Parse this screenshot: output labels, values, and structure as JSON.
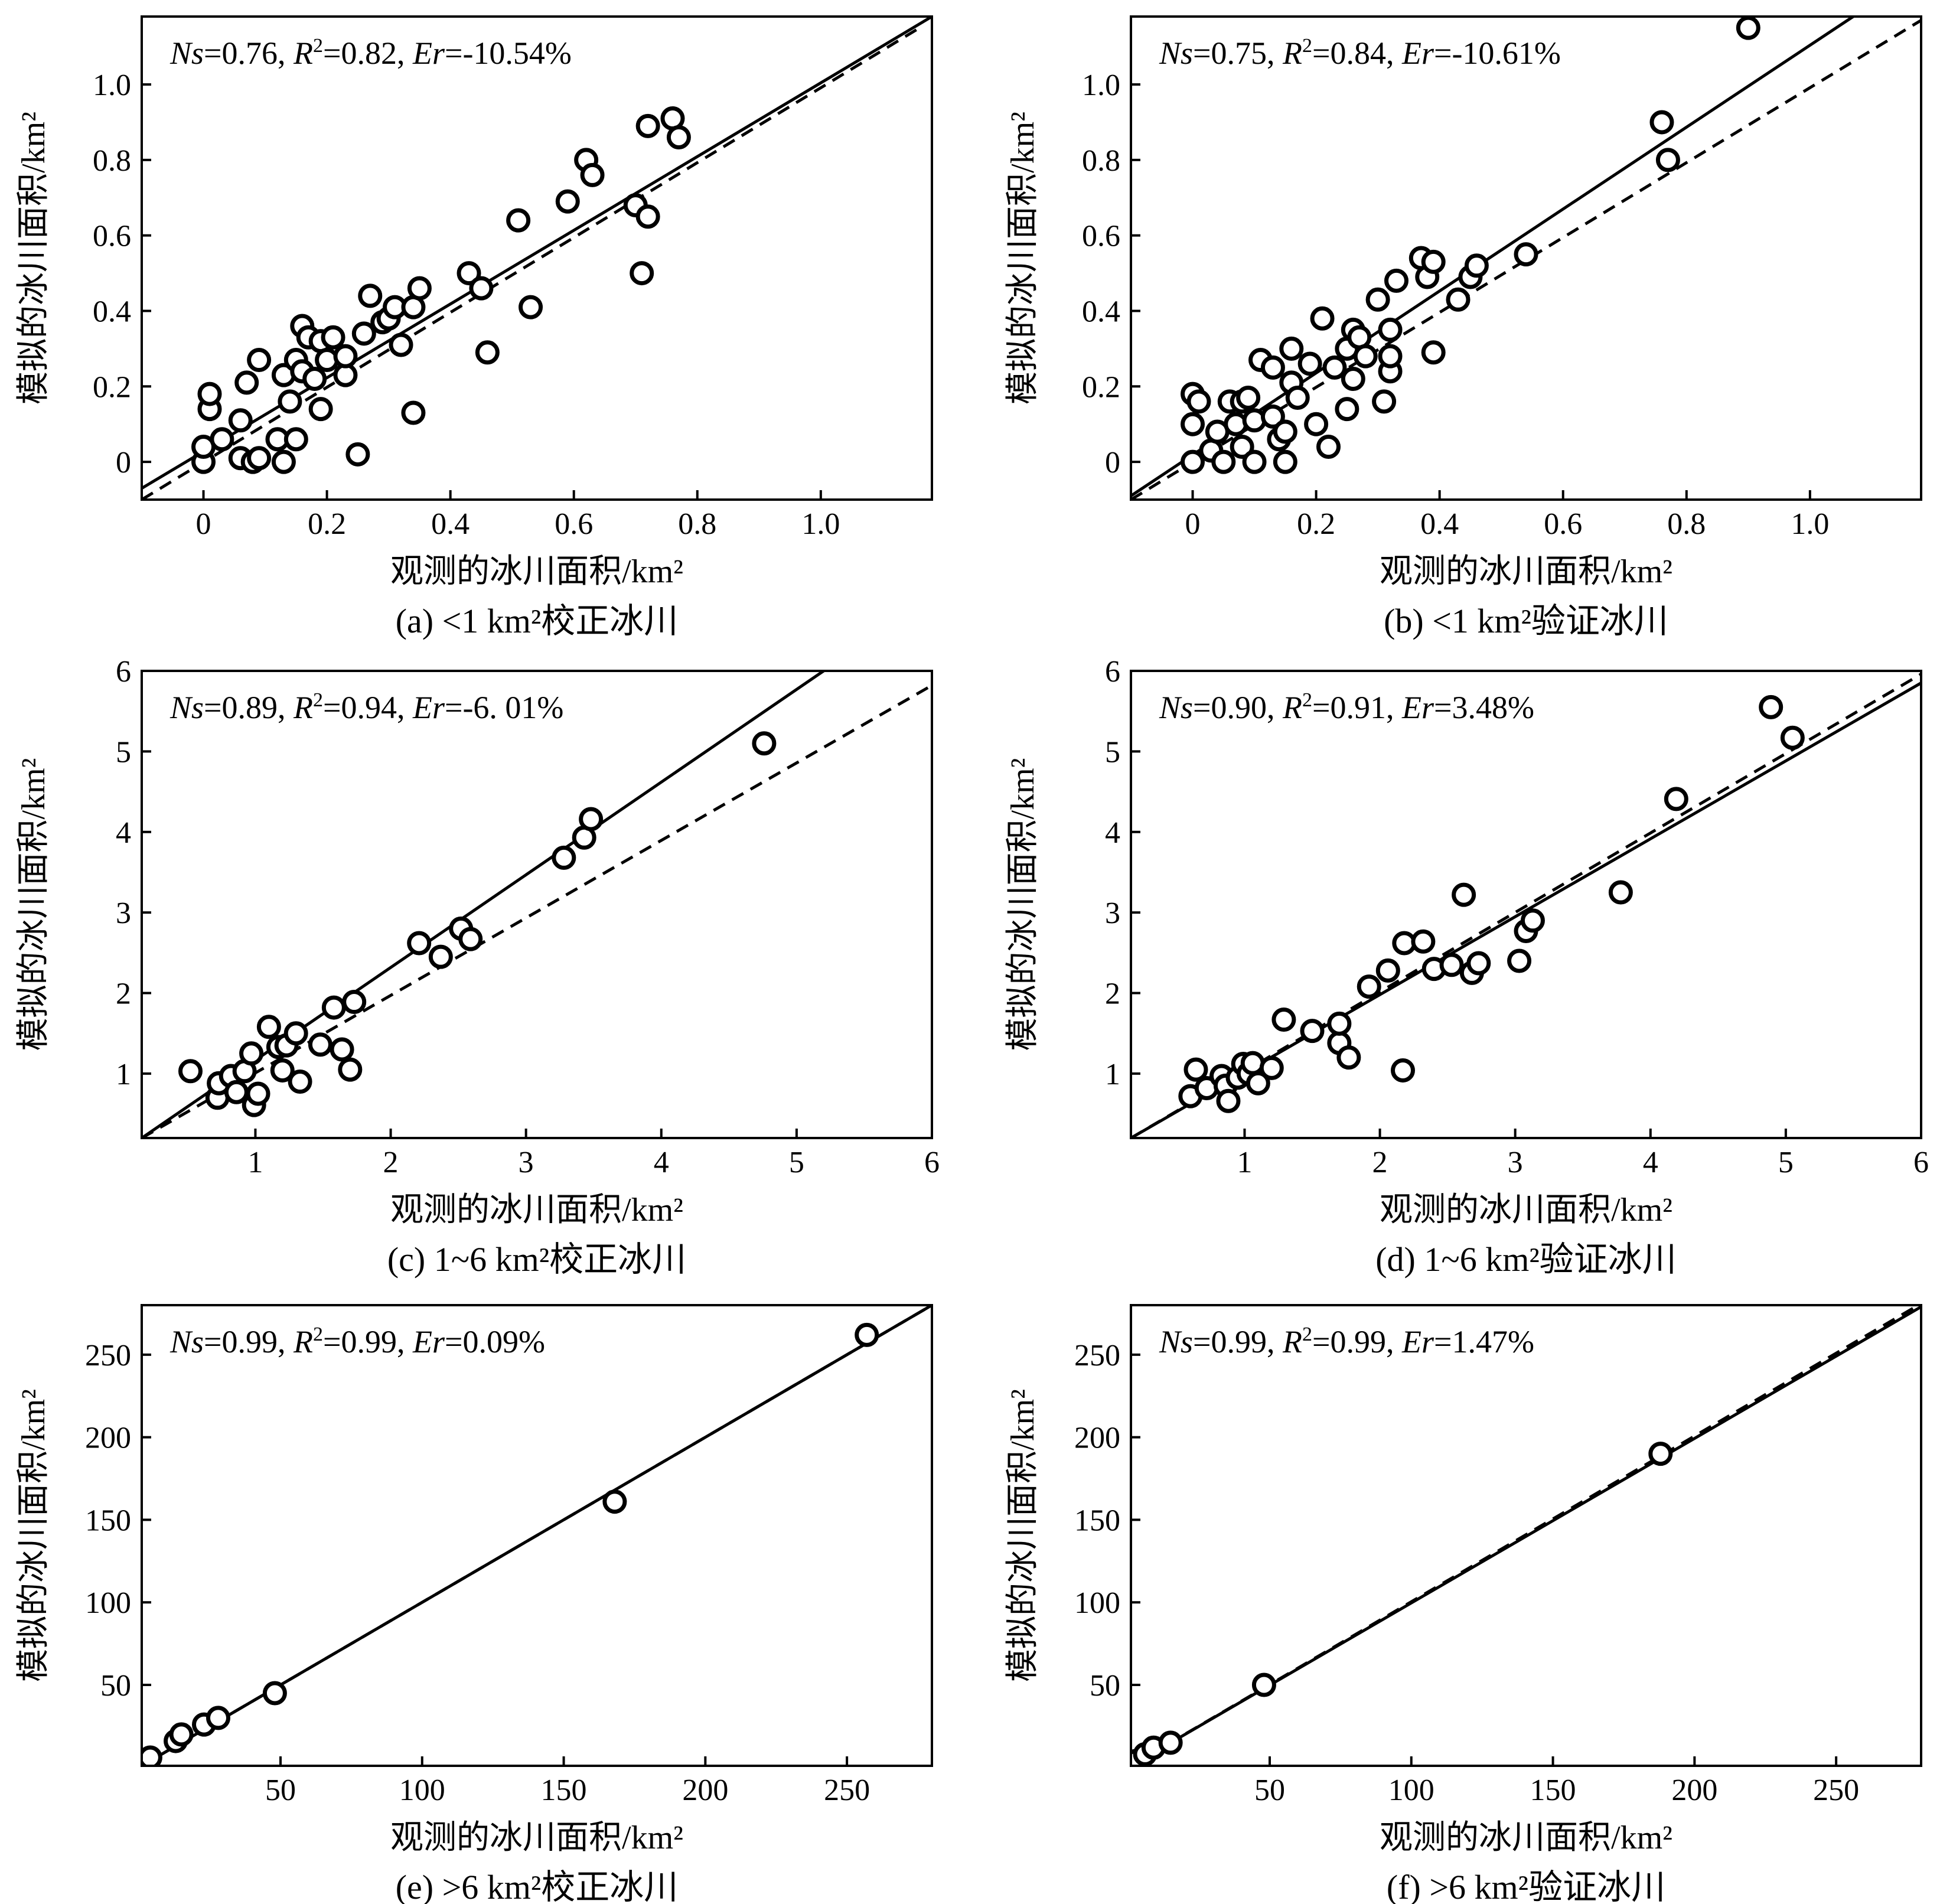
{
  "figure": {
    "x_axis_title": "观测的冰川面积/km²",
    "y_axis_title": "模拟的冰川面积/km²"
  },
  "chart_data": [
    {
      "type": "scatter",
      "caption": "(a) <1 km²校正冰川",
      "stats": {
        "ns": "0.76",
        "r2": "0.82",
        "er": "-10.54%"
      },
      "xlim": [
        -0.1,
        1.18
      ],
      "ylim": [
        -0.1,
        1.18
      ],
      "xticks": [
        0,
        0.2,
        0.4,
        0.6,
        0.8,
        1.0
      ],
      "xtick_labels": [
        "0",
        "0.2",
        "0.4",
        "0.6",
        "0.8",
        "1.0"
      ],
      "yticks": [
        0,
        0.2,
        0.4,
        0.6,
        0.8,
        1.0
      ],
      "ytick_labels": [
        "0",
        "0.2",
        "0.4",
        "0.6",
        "0.8",
        "1.0"
      ],
      "fit_line": [
        [
          -0.1,
          -0.07
        ],
        [
          1.18,
          1.18
        ]
      ],
      "ref_line": [
        [
          -0.1,
          -0.1
        ],
        [
          1.16,
          1.15
        ]
      ],
      "points": [
        [
          0.0,
          0.0
        ],
        [
          0.0,
          0.04
        ],
        [
          0.01,
          0.14
        ],
        [
          0.01,
          0.18
        ],
        [
          0.03,
          0.06
        ],
        [
          0.06,
          0.11
        ],
        [
          0.06,
          0.01
        ],
        [
          0.07,
          0.21
        ],
        [
          0.08,
          0.0
        ],
        [
          0.09,
          0.01
        ],
        [
          0.09,
          0.27
        ],
        [
          0.12,
          0.06
        ],
        [
          0.13,
          0.0
        ],
        [
          0.13,
          0.23
        ],
        [
          0.14,
          0.16
        ],
        [
          0.15,
          0.06
        ],
        [
          0.15,
          0.27
        ],
        [
          0.16,
          0.24
        ],
        [
          0.16,
          0.36
        ],
        [
          0.17,
          0.33
        ],
        [
          0.18,
          0.22
        ],
        [
          0.19,
          0.32
        ],
        [
          0.19,
          0.14
        ],
        [
          0.2,
          0.27
        ],
        [
          0.21,
          0.33
        ],
        [
          0.23,
          0.23
        ],
        [
          0.23,
          0.28
        ],
        [
          0.25,
          0.02
        ],
        [
          0.26,
          0.34
        ],
        [
          0.27,
          0.44
        ],
        [
          0.29,
          0.37
        ],
        [
          0.3,
          0.38
        ],
        [
          0.31,
          0.41
        ],
        [
          0.32,
          0.31
        ],
        [
          0.34,
          0.41
        ],
        [
          0.34,
          0.13
        ],
        [
          0.35,
          0.46
        ],
        [
          0.43,
          0.5
        ],
        [
          0.45,
          0.46
        ],
        [
          0.46,
          0.29
        ],
        [
          0.51,
          0.64
        ],
        [
          0.53,
          0.41
        ],
        [
          0.59,
          0.69
        ],
        [
          0.62,
          0.8
        ],
        [
          0.63,
          0.76
        ],
        [
          0.7,
          0.68
        ],
        [
          0.71,
          0.5
        ],
        [
          0.72,
          0.65
        ],
        [
          0.72,
          0.89
        ],
        [
          0.76,
          0.91
        ],
        [
          0.77,
          0.86
        ]
      ]
    },
    {
      "type": "scatter",
      "caption": "(b) <1 km²验证冰川",
      "stats": {
        "ns": "0.75",
        "r2": "0.84",
        "er": "-10.61%"
      },
      "xlim": [
        -0.1,
        1.18
      ],
      "ylim": [
        -0.1,
        1.18
      ],
      "xticks": [
        0,
        0.2,
        0.4,
        0.6,
        0.8,
        1.0
      ],
      "xtick_labels": [
        "0",
        "0.2",
        "0.4",
        "0.6",
        "0.8",
        "1.0"
      ],
      "yticks": [
        0,
        0.2,
        0.4,
        0.6,
        0.8,
        1.0
      ],
      "ytick_labels": [
        "0",
        "0.2",
        "0.4",
        "0.6",
        "0.8",
        "1.0"
      ],
      "fit_line": [
        [
          -0.1,
          -0.09
        ],
        [
          1.07,
          1.18
        ]
      ],
      "ref_line": [
        [
          -0.1,
          -0.1
        ],
        [
          1.18,
          1.17
        ]
      ],
      "points": [
        [
          0.0,
          0.0
        ],
        [
          0.0,
          0.1
        ],
        [
          0.0,
          0.18
        ],
        [
          0.01,
          0.16
        ],
        [
          0.03,
          0.03
        ],
        [
          0.04,
          0.08
        ],
        [
          0.05,
          0.0
        ],
        [
          0.06,
          0.16
        ],
        [
          0.07,
          0.1
        ],
        [
          0.08,
          0.04
        ],
        [
          0.08,
          0.16
        ],
        [
          0.09,
          0.17
        ],
        [
          0.1,
          0.0
        ],
        [
          0.1,
          0.11
        ],
        [
          0.11,
          0.27
        ],
        [
          0.13,
          0.25
        ],
        [
          0.13,
          0.12
        ],
        [
          0.14,
          0.06
        ],
        [
          0.15,
          0.0
        ],
        [
          0.15,
          0.08
        ],
        [
          0.16,
          0.3
        ],
        [
          0.16,
          0.21
        ],
        [
          0.17,
          0.17
        ],
        [
          0.19,
          0.26
        ],
        [
          0.2,
          0.1
        ],
        [
          0.21,
          0.38
        ],
        [
          0.22,
          0.04
        ],
        [
          0.23,
          0.25
        ],
        [
          0.25,
          0.14
        ],
        [
          0.25,
          0.3
        ],
        [
          0.26,
          0.22
        ],
        [
          0.26,
          0.35
        ],
        [
          0.27,
          0.33
        ],
        [
          0.28,
          0.28
        ],
        [
          0.3,
          0.43
        ],
        [
          0.31,
          0.16
        ],
        [
          0.32,
          0.35
        ],
        [
          0.32,
          0.24
        ],
        [
          0.32,
          0.28
        ],
        [
          0.33,
          0.48
        ],
        [
          0.37,
          0.54
        ],
        [
          0.38,
          0.49
        ],
        [
          0.39,
          0.53
        ],
        [
          0.39,
          0.29
        ],
        [
          0.43,
          0.43
        ],
        [
          0.45,
          0.49
        ],
        [
          0.46,
          0.52
        ],
        [
          0.54,
          0.55
        ],
        [
          0.76,
          0.9
        ],
        [
          0.77,
          0.8
        ],
        [
          0.9,
          1.15
        ]
      ]
    },
    {
      "type": "scatter",
      "caption": "(c) 1~6 km²校正冰川",
      "stats": {
        "ns": "0.89",
        "r2": "0.94",
        "er": "-6. 01%"
      },
      "xlim": [
        0.16,
        6.0
      ],
      "ylim": [
        0.2,
        6.0
      ],
      "xticks": [
        1,
        2,
        3,
        4,
        5,
        6
      ],
      "xtick_labels": [
        "1",
        "2",
        "3",
        "4",
        "5",
        "6"
      ],
      "yticks": [
        1,
        2,
        3,
        4,
        5,
        6
      ],
      "ytick_labels": [
        "1",
        "2",
        "3",
        "4",
        "5",
        "6"
      ],
      "fit_line": [
        [
          0.16,
          0.2
        ],
        [
          5.2,
          6.0
        ]
      ],
      "ref_line": [
        [
          0.16,
          0.2
        ],
        [
          6.0,
          5.82
        ]
      ],
      "points": [
        [
          0.52,
          1.03
        ],
        [
          0.72,
          0.7
        ],
        [
          0.73,
          0.88
        ],
        [
          0.82,
          0.97
        ],
        [
          0.86,
          0.77
        ],
        [
          0.92,
          1.03
        ],
        [
          0.97,
          1.25
        ],
        [
          0.99,
          0.61
        ],
        [
          1.02,
          0.75
        ],
        [
          1.1,
          1.58
        ],
        [
          1.17,
          1.33
        ],
        [
          1.2,
          1.04
        ],
        [
          1.23,
          1.35
        ],
        [
          1.3,
          1.5
        ],
        [
          1.33,
          0.9
        ],
        [
          1.48,
          1.36
        ],
        [
          1.58,
          1.82
        ],
        [
          1.64,
          1.3
        ],
        [
          1.7,
          1.05
        ],
        [
          1.73,
          1.89
        ],
        [
          2.21,
          2.62
        ],
        [
          2.37,
          2.45
        ],
        [
          2.52,
          2.8
        ],
        [
          2.59,
          2.67
        ],
        [
          3.28,
          3.68
        ],
        [
          3.43,
          3.93
        ],
        [
          3.48,
          4.16
        ],
        [
          4.76,
          5.1
        ]
      ]
    },
    {
      "type": "scatter",
      "caption": "(d) 1~6 km²验证冰川",
      "stats": {
        "ns": "0.90",
        "r2": "0.91",
        "er": "3.48%"
      },
      "xlim": [
        0.16,
        6.0
      ],
      "ylim": [
        0.2,
        6.0
      ],
      "xticks": [
        1,
        2,
        3,
        4,
        5,
        6
      ],
      "xtick_labels": [
        "1",
        "2",
        "3",
        "4",
        "5",
        "6"
      ],
      "yticks": [
        1,
        2,
        3,
        4,
        5,
        6
      ],
      "ytick_labels": [
        "1",
        "2",
        "3",
        "4",
        "5",
        "6"
      ],
      "fit_line": [
        [
          0.16,
          0.2
        ],
        [
          6.0,
          5.85
        ]
      ],
      "ref_line": [
        [
          0.16,
          0.2
        ],
        [
          6.0,
          5.96
        ]
      ],
      "points": [
        [
          0.6,
          0.72
        ],
        [
          0.64,
          1.05
        ],
        [
          0.72,
          0.82
        ],
        [
          0.83,
          0.97
        ],
        [
          0.86,
          0.85
        ],
        [
          0.88,
          0.66
        ],
        [
          0.95,
          0.95
        ],
        [
          0.99,
          1.12
        ],
        [
          1.03,
          1.0
        ],
        [
          1.06,
          1.13
        ],
        [
          1.1,
          0.88
        ],
        [
          1.2,
          1.07
        ],
        [
          1.29,
          1.67
        ],
        [
          1.5,
          1.53
        ],
        [
          1.7,
          1.38
        ],
        [
          1.7,
          1.62
        ],
        [
          1.77,
          1.2
        ],
        [
          1.92,
          2.08
        ],
        [
          2.06,
          2.28
        ],
        [
          2.17,
          1.04
        ],
        [
          2.18,
          2.62
        ],
        [
          2.32,
          2.64
        ],
        [
          2.4,
          2.3
        ],
        [
          2.53,
          2.35
        ],
        [
          2.62,
          3.22
        ],
        [
          2.68,
          2.25
        ],
        [
          2.73,
          2.37
        ],
        [
          3.03,
          2.4
        ],
        [
          3.08,
          2.77
        ],
        [
          3.13,
          2.9
        ],
        [
          3.78,
          3.25
        ],
        [
          4.19,
          4.41
        ],
        [
          4.89,
          5.55
        ],
        [
          5.05,
          5.17
        ]
      ]
    },
    {
      "type": "scatter",
      "caption": "(e) >6 km²校正冰川",
      "stats": {
        "ns": "0.99",
        "r2": "0.99",
        "er": "0.09%"
      },
      "xlim": [
        1,
        280
      ],
      "ylim": [
        1,
        280
      ],
      "xticks": [
        50,
        100,
        150,
        200,
        250
      ],
      "xtick_labels": [
        "50",
        "100",
        "150",
        "200",
        "250"
      ],
      "yticks": [
        50,
        100,
        150,
        200,
        250
      ],
      "ytick_labels": [
        "50",
        "100",
        "150",
        "200",
        "250"
      ],
      "fit_line": [
        [
          1,
          1
        ],
        [
          280,
          280
        ]
      ],
      "ref_line": [
        [
          1,
          1
        ],
        [
          280,
          280
        ]
      ],
      "points": [
        [
          4,
          6
        ],
        [
          13,
          16
        ],
        [
          15,
          20
        ],
        [
          23,
          26
        ],
        [
          28,
          30
        ],
        [
          48,
          45
        ],
        [
          168,
          161
        ],
        [
          257,
          262
        ]
      ]
    },
    {
      "type": "scatter",
      "caption": "(f) >6 km²验证冰川",
      "stats": {
        "ns": "0.99",
        "r2": "0.99",
        "er": "1.47%"
      },
      "xlim": [
        1,
        280
      ],
      "ylim": [
        1,
        280
      ],
      "xticks": [
        50,
        100,
        150,
        200,
        250
      ],
      "xtick_labels": [
        "50",
        "100",
        "150",
        "200",
        "250"
      ],
      "yticks": [
        50,
        100,
        150,
        200,
        250
      ],
      "ytick_labels": [
        "50",
        "100",
        "150",
        "200",
        "250"
      ],
      "fit_line": [
        [
          1,
          1
        ],
        [
          280,
          279
        ]
      ],
      "ref_line": [
        [
          1,
          1
        ],
        [
          280,
          281
        ]
      ],
      "points": [
        [
          3,
          4
        ],
        [
          6,
          8
        ],
        [
          9,
          12
        ],
        [
          15,
          15
        ],
        [
          48,
          50
        ],
        [
          188,
          190
        ]
      ]
    }
  ]
}
